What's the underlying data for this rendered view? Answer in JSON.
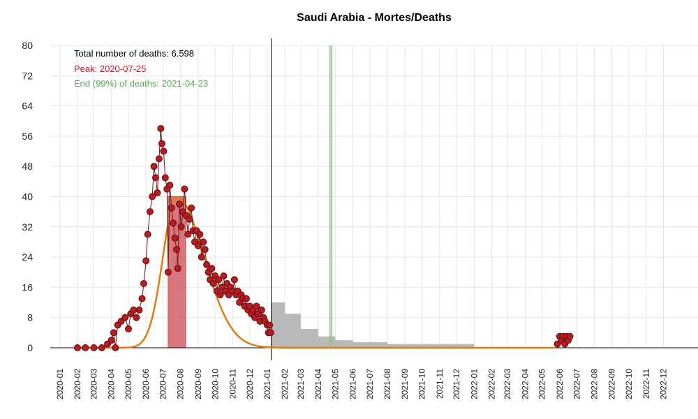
{
  "chart_data": {
    "type": "scatter",
    "title": "Saudi Arabia - Mortes/Deaths",
    "xlabel": "",
    "ylabel": "",
    "ylim": [
      0,
      80
    ],
    "xlim": [
      "2019-12-15",
      "2023-01-31"
    ],
    "yticks": [
      0,
      8,
      16,
      24,
      32,
      40,
      48,
      56,
      64,
      72,
      80
    ],
    "xticks": [
      "2020-01",
      "2020-02",
      "2020-03",
      "2020-04",
      "2020-05",
      "2020-06",
      "2020-07",
      "2020-08",
      "2020-09",
      "2020-10",
      "2020-11",
      "2020-12",
      "2021-01",
      "2021-02",
      "2021-03",
      "2021-04",
      "2021-05",
      "2021-06",
      "2021-07",
      "2021-08",
      "2021-09",
      "2021-10",
      "2021-11",
      "2021-12",
      "2022-01",
      "2022-02",
      "2022-03",
      "2022-04",
      "2022-05",
      "2022-06",
      "2022-07",
      "2022-08",
      "2022-09",
      "2022-10",
      "2022-11",
      "2022-12"
    ],
    "grid": true,
    "annotations": {
      "total": "Total number of deaths: 6.598",
      "peak": "Peak: 2020-07-25",
      "end": "End (99%) of deaths: 2021-04-23"
    },
    "today_line": "2021-01-08",
    "end_band": [
      "2021-04-20",
      "2021-04-26"
    ],
    "peak_band": [
      "2020-07-10",
      "2020-08-10"
    ],
    "colors": {
      "points_fill": "#b81c22",
      "points_stroke": "#5a0e0e",
      "fit_line": "#e07a12",
      "peak_band": "#d2545e",
      "end_band": "#8fc48f",
      "forecast_band": "#b3b3b3",
      "total_text": "#000000",
      "peak_text": "#c0152a",
      "end_text": "#5aa65a"
    },
    "fit_curve": {
      "peak_date": "2020-07-25",
      "peak_value": 40,
      "sigma_left_days": 24,
      "sigma_right_days": 48
    },
    "observed": [
      {
        "date": "2020-02-01",
        "value": 0
      },
      {
        "date": "2020-02-15",
        "value": 0
      },
      {
        "date": "2020-03-01",
        "value": 0
      },
      {
        "date": "2020-03-15",
        "value": 0
      },
      {
        "date": "2020-03-25",
        "value": 1
      },
      {
        "date": "2020-04-01",
        "value": 2
      },
      {
        "date": "2020-04-05",
        "value": 4
      },
      {
        "date": "2020-04-08",
        "value": 0
      },
      {
        "date": "2020-04-12",
        "value": 6
      },
      {
        "date": "2020-04-18",
        "value": 7
      },
      {
        "date": "2020-04-25",
        "value": 8
      },
      {
        "date": "2020-05-01",
        "value": 5
      },
      {
        "date": "2020-05-05",
        "value": 9
      },
      {
        "date": "2020-05-10",
        "value": 10
      },
      {
        "date": "2020-05-15",
        "value": 8
      },
      {
        "date": "2020-05-20",
        "value": 10
      },
      {
        "date": "2020-05-25",
        "value": 13
      },
      {
        "date": "2020-05-28",
        "value": 17
      },
      {
        "date": "2020-06-01",
        "value": 23
      },
      {
        "date": "2020-06-04",
        "value": 30
      },
      {
        "date": "2020-06-08",
        "value": 36
      },
      {
        "date": "2020-06-12",
        "value": 40
      },
      {
        "date": "2020-06-15",
        "value": 48
      },
      {
        "date": "2020-06-18",
        "value": 45
      },
      {
        "date": "2020-06-21",
        "value": 41
      },
      {
        "date": "2020-06-24",
        "value": 50
      },
      {
        "date": "2020-06-27",
        "value": 58
      },
      {
        "date": "2020-06-29",
        "value": 54
      },
      {
        "date": "2020-07-02",
        "value": 52
      },
      {
        "date": "2020-07-05",
        "value": 45
      },
      {
        "date": "2020-07-08",
        "value": 42
      },
      {
        "date": "2020-07-10",
        "value": 20
      },
      {
        "date": "2020-07-13",
        "value": 43
      },
      {
        "date": "2020-07-16",
        "value": 37
      },
      {
        "date": "2020-07-19",
        "value": 33
      },
      {
        "date": "2020-07-22",
        "value": 29
      },
      {
        "date": "2020-07-25",
        "value": 26
      },
      {
        "date": "2020-07-27",
        "value": 21
      },
      {
        "date": "2020-07-30",
        "value": 38
      },
      {
        "date": "2020-08-02",
        "value": 32
      },
      {
        "date": "2020-08-05",
        "value": 36
      },
      {
        "date": "2020-08-08",
        "value": 42
      },
      {
        "date": "2020-08-11",
        "value": 35
      },
      {
        "date": "2020-08-14",
        "value": 30
      },
      {
        "date": "2020-08-17",
        "value": 34
      },
      {
        "date": "2020-08-20",
        "value": 37
      },
      {
        "date": "2020-08-23",
        "value": 31
      },
      {
        "date": "2020-08-26",
        "value": 28
      },
      {
        "date": "2020-08-29",
        "value": 31
      },
      {
        "date": "2020-09-01",
        "value": 27
      },
      {
        "date": "2020-09-04",
        "value": 30
      },
      {
        "date": "2020-09-07",
        "value": 24
      },
      {
        "date": "2020-09-10",
        "value": 28
      },
      {
        "date": "2020-09-13",
        "value": 26
      },
      {
        "date": "2020-09-16",
        "value": 22
      },
      {
        "date": "2020-09-19",
        "value": 20
      },
      {
        "date": "2020-09-22",
        "value": 18
      },
      {
        "date": "2020-09-25",
        "value": 21
      },
      {
        "date": "2020-09-28",
        "value": 17
      },
      {
        "date": "2020-10-01",
        "value": 19
      },
      {
        "date": "2020-10-04",
        "value": 15
      },
      {
        "date": "2020-10-07",
        "value": 18
      },
      {
        "date": "2020-10-10",
        "value": 14
      },
      {
        "date": "2020-10-13",
        "value": 16
      },
      {
        "date": "2020-10-16",
        "value": 19
      },
      {
        "date": "2020-10-19",
        "value": 15
      },
      {
        "date": "2020-10-22",
        "value": 17
      },
      {
        "date": "2020-10-25",
        "value": 14
      },
      {
        "date": "2020-10-28",
        "value": 16
      },
      {
        "date": "2020-11-01",
        "value": 15
      },
      {
        "date": "2020-11-04",
        "value": 18
      },
      {
        "date": "2020-11-07",
        "value": 14
      },
      {
        "date": "2020-11-10",
        "value": 15
      },
      {
        "date": "2020-11-13",
        "value": 12
      },
      {
        "date": "2020-11-16",
        "value": 14
      },
      {
        "date": "2020-11-19",
        "value": 13
      },
      {
        "date": "2020-11-22",
        "value": 11
      },
      {
        "date": "2020-11-25",
        "value": 13
      },
      {
        "date": "2020-11-28",
        "value": 10
      },
      {
        "date": "2020-12-01",
        "value": 11
      },
      {
        "date": "2020-12-04",
        "value": 9
      },
      {
        "date": "2020-12-07",
        "value": 10
      },
      {
        "date": "2020-12-10",
        "value": 8
      },
      {
        "date": "2020-12-13",
        "value": 11
      },
      {
        "date": "2020-12-16",
        "value": 9
      },
      {
        "date": "2020-12-19",
        "value": 7
      },
      {
        "date": "2020-12-22",
        "value": 10
      },
      {
        "date": "2020-12-25",
        "value": 8
      },
      {
        "date": "2020-12-28",
        "value": 7
      },
      {
        "date": "2021-01-01",
        "value": 6
      },
      {
        "date": "2021-01-03",
        "value": 4
      },
      {
        "date": "2021-01-05",
        "value": 6
      },
      {
        "date": "2021-01-07",
        "value": 4
      },
      {
        "date": "2022-05-28",
        "value": 1
      },
      {
        "date": "2022-06-01",
        "value": 3
      },
      {
        "date": "2022-06-04",
        "value": 2
      },
      {
        "date": "2022-06-07",
        "value": 3
      },
      {
        "date": "2022-06-10",
        "value": 1
      },
      {
        "date": "2022-06-13",
        "value": 3
      },
      {
        "date": "2022-06-16",
        "value": 2
      },
      {
        "date": "2022-06-19",
        "value": 3
      }
    ],
    "forecast_upper": [
      {
        "date": "2021-01-08",
        "value": 12
      },
      {
        "date": "2021-02-01",
        "value": 9
      },
      {
        "date": "2021-03-01",
        "value": 5
      },
      {
        "date": "2021-04-01",
        "value": 3
      },
      {
        "date": "2021-05-01",
        "value": 2
      },
      {
        "date": "2021-06-01",
        "value": 1.5
      },
      {
        "date": "2021-08-01",
        "value": 1
      },
      {
        "date": "2021-12-15",
        "value": 1
      },
      {
        "date": "2022-01-01",
        "value": 0.3
      }
    ]
  }
}
